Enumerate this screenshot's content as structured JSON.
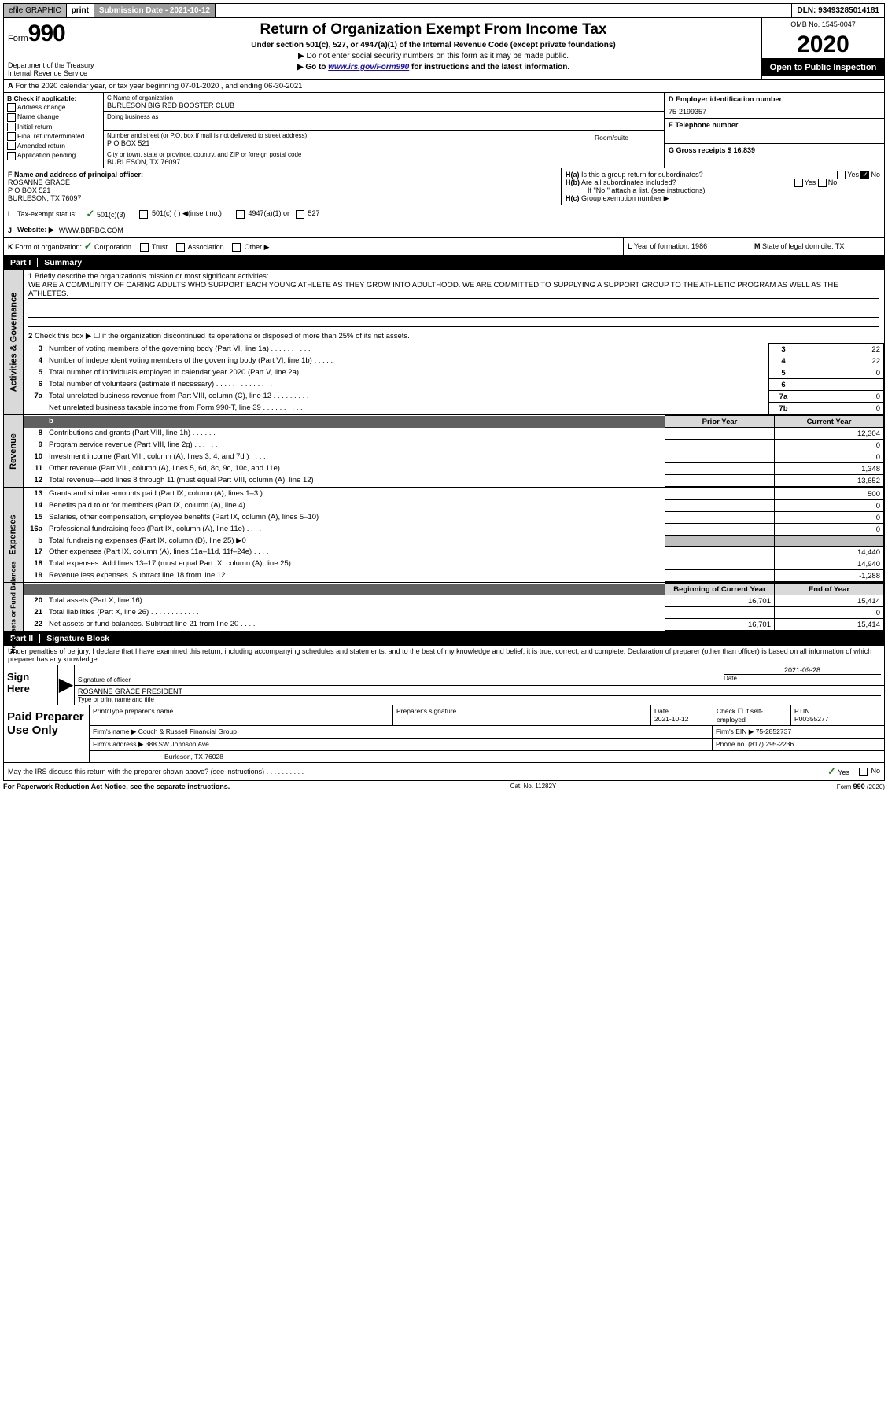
{
  "topbar": {
    "efile_label": "efile GRAPHIC",
    "print_label": "print",
    "submission_label": "Submission Date - 2021-10-12",
    "dln_label": "DLN: 93493285014181"
  },
  "header": {
    "form_prefix": "Form",
    "form_number": "990",
    "dept": "Department of the Treasury",
    "irs": "Internal Revenue Service",
    "title": "Return of Organization Exempt From Income Tax",
    "subtitle": "Under section 501(c), 527, or 4947(a)(1) of the Internal Revenue Code (except private foundations)",
    "note1": "▶ Do not enter social security numbers on this form as it may be made public.",
    "note2_pre": "▶ Go to ",
    "note2_link": "www.irs.gov/Form990",
    "note2_post": " for instructions and the latest information.",
    "omb": "OMB No. 1545-0047",
    "year": "2020",
    "inspection": "Open to Public Inspection"
  },
  "row_a": {
    "label_a": "A",
    "text": " For the 2020 calendar year, or tax year beginning 07-01-2020    , and ending 06-30-2021"
  },
  "col_b": {
    "header": "B Check if applicable:",
    "items": [
      "Address change",
      "Name change",
      "Initial return",
      "Final return/terminated",
      "Amended return",
      "Application pending"
    ]
  },
  "col_c": {
    "name_label": "C Name of organization",
    "name": "BURLESON BIG RED BOOSTER CLUB",
    "dba_label": "Doing business as",
    "addr_label": "Number and street (or P.O. box if mail is not delivered to street address)",
    "addr": "P O BOX 521",
    "room_label": "Room/suite",
    "city_label": "City or town, state or province, country, and ZIP or foreign postal code",
    "city": "BURLESON, TX  76097"
  },
  "col_d": {
    "ein_label": "D Employer identification number",
    "ein": "75-2199357",
    "phone_label": "E Telephone number",
    "gross_label": "G Gross receipts $ 16,839"
  },
  "row_f": {
    "label": "F  Name and address of principal officer:",
    "name": "ROSANNE GRACE",
    "addr1": "P O BOX 521",
    "addr2": "BURLESON, TX  76097"
  },
  "row_h": {
    "ha_label": "H(a)",
    "ha_text": "Is this a group return for subordinates?",
    "yes": "Yes",
    "no": "No",
    "hb_label": "H(b)",
    "hb_text": "Are all subordinates included?",
    "hb_note": "If \"No,\" attach a list. (see instructions)",
    "hc_label": "H(c)",
    "hc_text": "Group exemption number ▶"
  },
  "row_i": {
    "label": "I",
    "tax_label": "Tax-exempt status:",
    "opt1": "501(c)(3)",
    "opt2": "501(c) (  ) ◀(insert no.)",
    "opt3": "4947(a)(1) or",
    "opt4": "527"
  },
  "row_j": {
    "label": "J",
    "website_label": "Website: ▶",
    "website": "WWW.BBRBC.COM"
  },
  "row_k": {
    "label": "K",
    "form_label": "Form of organization:",
    "corp": "Corporation",
    "trust": "Trust",
    "assoc": "Association",
    "other": "Other ▶"
  },
  "row_l": {
    "label": "L",
    "text": "Year of formation: 1986"
  },
  "row_m": {
    "label": "M",
    "text": "State of legal domicile: TX"
  },
  "part1": {
    "label": "Part I",
    "title": "Summary"
  },
  "activities": {
    "vtab": "Activities & Governance",
    "l1_label": "1",
    "l1_text": "Briefly describe the organization's mission or most significant activities:",
    "l1_mission": "WE ARE A COMMUNITY OF CARING ADULTS WHO SUPPORT EACH YOUNG ATHLETE AS THEY GROW INTO ADULTHOOD. WE ARE COMMITTED TO SUPPLYING A SUPPORT GROUP TO THE ATHLETIC PROGRAM AS WELL AS THE ATHLETES.",
    "l2_label": "2",
    "l2_text": "Check this box ▶ ☐ if the organization discontinued its operations or disposed of more than 25% of its net assets.",
    "rows": [
      {
        "n": "3",
        "d": "Number of voting members of the governing body (Part VI, line 1a)  .  .  .  .  .  .  .  .  .  .",
        "box": "3",
        "v": "22"
      },
      {
        "n": "4",
        "d": "Number of independent voting members of the governing body (Part VI, line 1b)  .  .  .  .  .",
        "box": "4",
        "v": "22"
      },
      {
        "n": "5",
        "d": "Total number of individuals employed in calendar year 2020 (Part V, line 2a)  .  .  .  .  .  .",
        "box": "5",
        "v": "0"
      },
      {
        "n": "6",
        "d": "Total number of volunteers (estimate if necessary)   .  .  .  .  .  .  .  .  .  .  .  .  .  .",
        "box": "6",
        "v": ""
      },
      {
        "n": "7a",
        "d": "Total unrelated business revenue from Part VIII, column (C), line 12  .  .  .  .  .  .  .  .  .",
        "box": "7a",
        "v": "0"
      },
      {
        "n": "",
        "d": "Net unrelated business taxable income from Form 990-T, line 39   .  .  .  .  .  .  .  .  .  .",
        "box": "7b",
        "v": "0"
      }
    ]
  },
  "revenue": {
    "vtab": "Revenue",
    "hdr_b": "b",
    "hdr_prior": "Prior Year",
    "hdr_current": "Current Year",
    "rows": [
      {
        "n": "8",
        "d": "Contributions and grants (Part VIII, line 1h)  .  .  .  .  .  .",
        "py": "",
        "cy": "12,304"
      },
      {
        "n": "9",
        "d": "Program service revenue (Part VIII, line 2g)   .  .  .  .  .  .",
        "py": "",
        "cy": "0"
      },
      {
        "n": "10",
        "d": "Investment income (Part VIII, column (A), lines 3, 4, and 7d )   .  .  .   .",
        "py": "",
        "cy": "0"
      },
      {
        "n": "11",
        "d": "Other revenue (Part VIII, column (A), lines 5, 6d, 8c, 9c, 10c, and 11e)",
        "py": "",
        "cy": "1,348"
      },
      {
        "n": "12",
        "d": "Total revenue—add lines 8 through 11 (must equal Part VIII, column (A), line 12)",
        "py": "",
        "cy": "13,652"
      }
    ]
  },
  "expenses": {
    "vtab": "Expenses",
    "rows": [
      {
        "n": "13",
        "d": "Grants and similar amounts paid (Part IX, column (A), lines 1–3 )  .  .  .",
        "py": "",
        "cy": "500"
      },
      {
        "n": "14",
        "d": "Benefits paid to or for members (Part IX, column (A), line 4)  .  .  .  .",
        "py": "",
        "cy": "0"
      },
      {
        "n": "15",
        "d": "Salaries, other compensation, employee benefits (Part IX, column (A), lines 5–10)",
        "py": "",
        "cy": "0"
      },
      {
        "n": "16a",
        "d": "Professional fundraising fees (Part IX, column (A), line 11e)   .  .  .  .",
        "py": "",
        "cy": "0"
      },
      {
        "n": "b",
        "d": "Total fundraising expenses (Part IX, column (D), line 25) ▶0",
        "py": "shade",
        "cy": "shade"
      },
      {
        "n": "17",
        "d": "Other expenses (Part IX, column (A), lines 11a–11d, 11f–24e)  .  .  .  .",
        "py": "",
        "cy": "14,440"
      },
      {
        "n": "18",
        "d": "Total expenses. Add lines 13–17 (must equal Part IX, column (A), line 25)",
        "py": "",
        "cy": "14,940"
      },
      {
        "n": "19",
        "d": "Revenue less expenses. Subtract line 18 from line 12  .  .  .  .  .  .  .",
        "py": "",
        "cy": "-1,288"
      }
    ]
  },
  "netassets": {
    "vtab": "Net Assets or Fund Balances",
    "hdr_begin": "Beginning of Current Year",
    "hdr_end": "End of Year",
    "rows": [
      {
        "n": "20",
        "d": "Total assets (Part X, line 16)  .  .  .  .  .  .  .  .  .  .  .  .  .",
        "py": "16,701",
        "cy": "15,414"
      },
      {
        "n": "21",
        "d": "Total liabilities (Part X, line 26)   .  .  .  .  .  .  .  .  .  .  .  .",
        "py": "",
        "cy": "0"
      },
      {
        "n": "22",
        "d": "Net assets or fund balances. Subtract line 21 from line 20  .  .  .  .",
        "py": "16,701",
        "cy": "15,414"
      }
    ]
  },
  "part2": {
    "label": "Part II",
    "title": "Signature Block"
  },
  "penalties": "Under penalties of perjury, I declare that I have examined this return, including accompanying schedules and statements, and to the best of my knowledge and belief, it is true, correct, and complete. Declaration of preparer (other than officer) is based on all information of which preparer has any knowledge.",
  "sign": {
    "label": "Sign Here",
    "sig_label": "Signature of officer",
    "date_label": "Date",
    "date": "2021-09-28",
    "name": "ROSANNE GRACE PRESIDENT",
    "name_label": "Type or print name and title"
  },
  "preparer": {
    "label": "Paid Preparer Use Only",
    "col1": "Print/Type preparer's name",
    "col2": "Preparer's signature",
    "col3_label": "Date",
    "col3": "2021-10-12",
    "col4_label": "Check ☐ if self-employed",
    "col5_label": "PTIN",
    "col5": "P00355277",
    "firm_name_label": "Firm's name     ▶",
    "firm_name": "Couch & Russell Financial Group",
    "firm_ein_label": "Firm's EIN ▶",
    "firm_ein": "75-2852737",
    "firm_addr_label": "Firm's address ▶",
    "firm_addr1": "388 SW Johnson Ave",
    "firm_addr2": "Burleson, TX  76028",
    "phone_label": "Phone no.",
    "phone": "(817) 295-2236"
  },
  "discuss": {
    "text": "May the IRS discuss this return with the preparer shown above? (see instructions)   .  .  .  .  .  .  .  .  .  .",
    "yes": "Yes",
    "no": "No"
  },
  "footer": {
    "left": "For Paperwork Reduction Act Notice, see the separate instructions.",
    "center": "Cat. No. 11282Y",
    "right_pre": "Form ",
    "right_num": "990",
    "right_post": " (2020)"
  }
}
